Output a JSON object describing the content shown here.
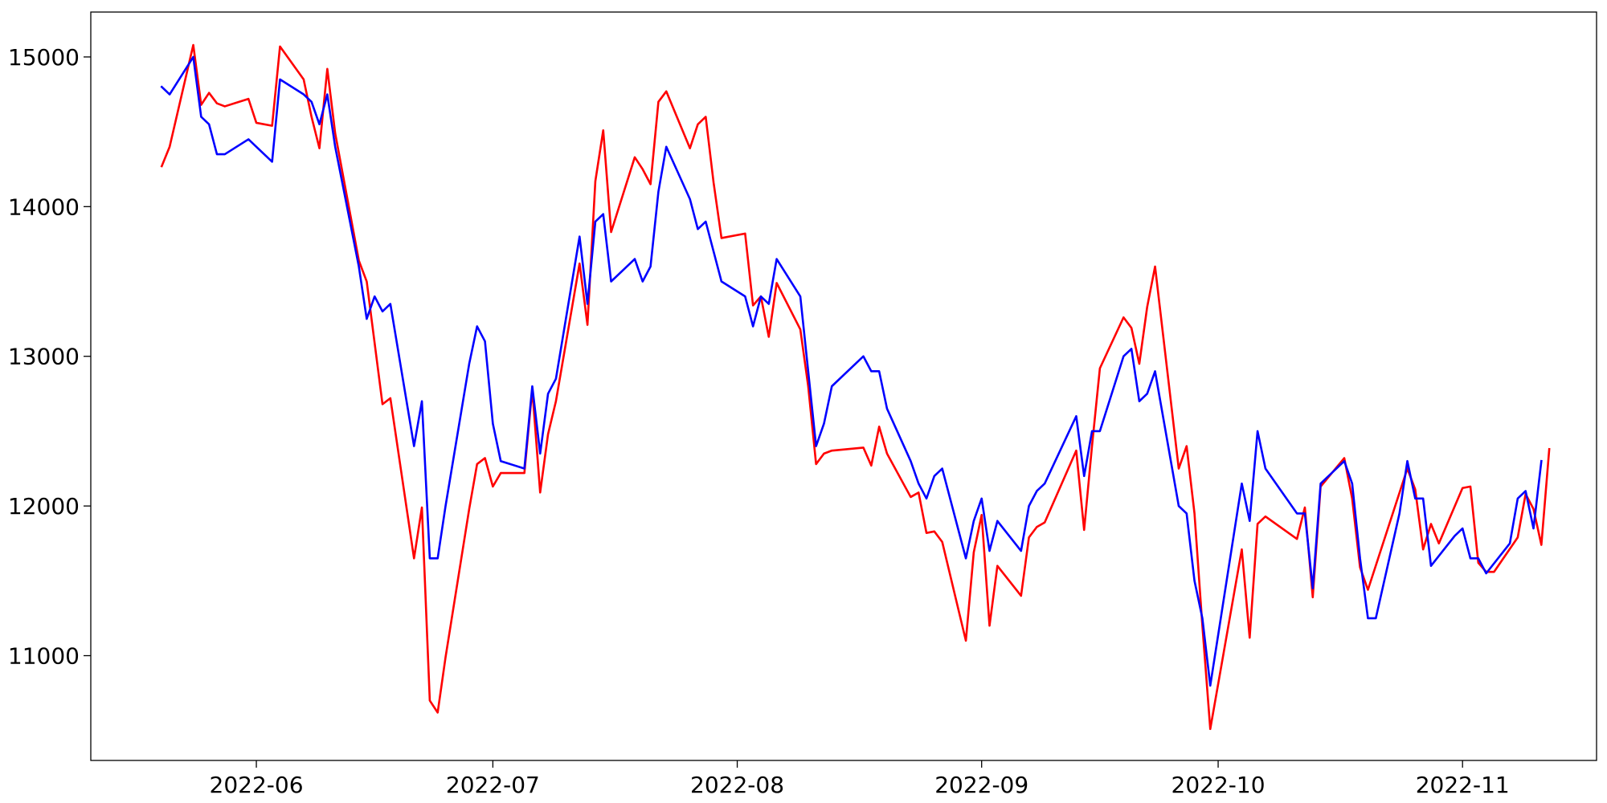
{
  "chart_data": {
    "type": "line",
    "title": "",
    "xlabel": "",
    "ylabel": "",
    "x_axis": {
      "type": "date",
      "range": [
        "2022-05-11",
        "2022-11-18"
      ],
      "ticks": [
        {
          "date": "2022-06-01",
          "label": "2022-06"
        },
        {
          "date": "2022-07-01",
          "label": "2022-07"
        },
        {
          "date": "2022-08-01",
          "label": "2022-08"
        },
        {
          "date": "2022-09-01",
          "label": "2022-09"
        },
        {
          "date": "2022-10-01",
          "label": "2022-10"
        },
        {
          "date": "2022-11-01",
          "label": "2022-11"
        }
      ]
    },
    "y_axis": {
      "range": [
        10300,
        15300
      ],
      "ticks": [
        {
          "value": 11000,
          "label": "11000"
        },
        {
          "value": 12000,
          "label": "12000"
        },
        {
          "value": 13000,
          "label": "13000"
        },
        {
          "value": 14000,
          "label": "14000"
        },
        {
          "value": 15000,
          "label": "15000"
        }
      ]
    },
    "grid": false,
    "legend": "none",
    "series": [
      {
        "color": "#ff0000",
        "points": [
          [
            "2022-05-20",
            14270
          ],
          [
            "2022-05-21",
            14400
          ],
          [
            "2022-05-24",
            15080
          ],
          [
            "2022-05-25",
            14680
          ],
          [
            "2022-05-26",
            14760
          ],
          [
            "2022-05-27",
            14690
          ],
          [
            "2022-05-28",
            14670
          ],
          [
            "2022-05-31",
            14720
          ],
          [
            "2022-06-01",
            14560
          ],
          [
            "2022-06-03",
            14540
          ],
          [
            "2022-06-04",
            15070
          ],
          [
            "2022-06-07",
            14850
          ],
          [
            "2022-06-08",
            14600
          ],
          [
            "2022-06-09",
            14390
          ],
          [
            "2022-06-10",
            14920
          ],
          [
            "2022-06-11",
            14490
          ],
          [
            "2022-06-14",
            13640
          ],
          [
            "2022-06-15",
            13500
          ],
          [
            "2022-06-17",
            12680
          ],
          [
            "2022-06-18",
            12720
          ],
          [
            "2022-06-21",
            11650
          ],
          [
            "2022-06-22",
            11990
          ],
          [
            "2022-06-23",
            10700
          ],
          [
            "2022-06-24",
            10620
          ],
          [
            "2022-06-25",
            10990
          ],
          [
            "2022-06-28",
            11980
          ],
          [
            "2022-06-29",
            12280
          ],
          [
            "2022-06-30",
            12320
          ],
          [
            "2022-07-01",
            12130
          ],
          [
            "2022-07-02",
            12220
          ],
          [
            "2022-07-05",
            12220
          ],
          [
            "2022-07-06",
            12780
          ],
          [
            "2022-07-07",
            12090
          ],
          [
            "2022-07-08",
            12480
          ],
          [
            "2022-07-09",
            12700
          ],
          [
            "2022-07-12",
            13620
          ],
          [
            "2022-07-13",
            13210
          ],
          [
            "2022-07-14",
            14170
          ],
          [
            "2022-07-15",
            14510
          ],
          [
            "2022-07-16",
            13830
          ],
          [
            "2022-07-19",
            14330
          ],
          [
            "2022-07-20",
            14250
          ],
          [
            "2022-07-21",
            14150
          ],
          [
            "2022-07-22",
            14700
          ],
          [
            "2022-07-23",
            14770
          ],
          [
            "2022-07-26",
            14390
          ],
          [
            "2022-07-27",
            14550
          ],
          [
            "2022-07-28",
            14600
          ],
          [
            "2022-07-29",
            14160
          ],
          [
            "2022-07-30",
            13790
          ],
          [
            "2022-08-02",
            13820
          ],
          [
            "2022-08-03",
            13340
          ],
          [
            "2022-08-04",
            13400
          ],
          [
            "2022-08-05",
            13130
          ],
          [
            "2022-08-06",
            13490
          ],
          [
            "2022-08-09",
            13180
          ],
          [
            "2022-08-10",
            12800
          ],
          [
            "2022-08-11",
            12280
          ],
          [
            "2022-08-12",
            12350
          ],
          [
            "2022-08-13",
            12370
          ],
          [
            "2022-08-17",
            12390
          ],
          [
            "2022-08-18",
            12270
          ],
          [
            "2022-08-19",
            12530
          ],
          [
            "2022-08-20",
            12350
          ],
          [
            "2022-08-23",
            12060
          ],
          [
            "2022-08-24",
            12090
          ],
          [
            "2022-08-25",
            11820
          ],
          [
            "2022-08-26",
            11830
          ],
          [
            "2022-08-27",
            11760
          ],
          [
            "2022-08-30",
            11100
          ],
          [
            "2022-08-31",
            11690
          ],
          [
            "2022-09-01",
            11940
          ],
          [
            "2022-09-02",
            11200
          ],
          [
            "2022-09-03",
            11600
          ],
          [
            "2022-09-06",
            11400
          ],
          [
            "2022-09-07",
            11790
          ],
          [
            "2022-09-08",
            11860
          ],
          [
            "2022-09-09",
            11890
          ],
          [
            "2022-09-13",
            12370
          ],
          [
            "2022-09-14",
            11840
          ],
          [
            "2022-09-15",
            12400
          ],
          [
            "2022-09-16",
            12920
          ],
          [
            "2022-09-19",
            13260
          ],
          [
            "2022-09-20",
            13190
          ],
          [
            "2022-09-21",
            12950
          ],
          [
            "2022-09-22",
            13330
          ],
          [
            "2022-09-23",
            13600
          ],
          [
            "2022-09-26",
            12250
          ],
          [
            "2022-09-27",
            12400
          ],
          [
            "2022-09-28",
            11950
          ],
          [
            "2022-09-29",
            11200
          ],
          [
            "2022-09-30",
            10510
          ],
          [
            "2022-10-04",
            11710
          ],
          [
            "2022-10-05",
            11120
          ],
          [
            "2022-10-06",
            11880
          ],
          [
            "2022-10-07",
            11930
          ],
          [
            "2022-10-11",
            11780
          ],
          [
            "2022-10-12",
            11990
          ],
          [
            "2022-10-13",
            11390
          ],
          [
            "2022-10-14",
            12130
          ],
          [
            "2022-10-17",
            12320
          ],
          [
            "2022-10-18",
            12050
          ],
          [
            "2022-10-19",
            11590
          ],
          [
            "2022-10-20",
            11440
          ],
          [
            "2022-10-25",
            12250
          ],
          [
            "2022-10-26",
            12110
          ],
          [
            "2022-10-27",
            11710
          ],
          [
            "2022-10-28",
            11880
          ],
          [
            "2022-10-29",
            11750
          ],
          [
            "2022-11-01",
            12120
          ],
          [
            "2022-11-02",
            12130
          ],
          [
            "2022-11-03",
            11620
          ],
          [
            "2022-11-04",
            11560
          ],
          [
            "2022-11-05",
            11560
          ],
          [
            "2022-11-08",
            11790
          ],
          [
            "2022-11-09",
            12080
          ],
          [
            "2022-11-10",
            11980
          ],
          [
            "2022-11-11",
            11740
          ],
          [
            "2022-11-12",
            12380
          ]
        ]
      },
      {
        "color": "#0000ff",
        "points": [
          [
            "2022-05-20",
            14800
          ],
          [
            "2022-05-21",
            14750
          ],
          [
            "2022-05-24",
            15000
          ],
          [
            "2022-05-25",
            14600
          ],
          [
            "2022-05-26",
            14550
          ],
          [
            "2022-05-27",
            14350
          ],
          [
            "2022-05-28",
            14350
          ],
          [
            "2022-05-31",
            14450
          ],
          [
            "2022-06-01",
            14400
          ],
          [
            "2022-06-03",
            14300
          ],
          [
            "2022-06-04",
            14850
          ],
          [
            "2022-06-07",
            14750
          ],
          [
            "2022-06-08",
            14700
          ],
          [
            "2022-06-09",
            14550
          ],
          [
            "2022-06-10",
            14750
          ],
          [
            "2022-06-11",
            14400
          ],
          [
            "2022-06-14",
            13600
          ],
          [
            "2022-06-15",
            13250
          ],
          [
            "2022-06-16",
            13400
          ],
          [
            "2022-06-17",
            13300
          ],
          [
            "2022-06-18",
            13350
          ],
          [
            "2022-06-21",
            12400
          ],
          [
            "2022-06-22",
            12700
          ],
          [
            "2022-06-23",
            11650
          ],
          [
            "2022-06-24",
            11650
          ],
          [
            "2022-06-25",
            12000
          ],
          [
            "2022-06-28",
            12950
          ],
          [
            "2022-06-29",
            13200
          ],
          [
            "2022-06-30",
            13100
          ],
          [
            "2022-07-01",
            12550
          ],
          [
            "2022-07-02",
            12300
          ],
          [
            "2022-07-05",
            12250
          ],
          [
            "2022-07-06",
            12800
          ],
          [
            "2022-07-07",
            12350
          ],
          [
            "2022-07-08",
            12750
          ],
          [
            "2022-07-09",
            12850
          ],
          [
            "2022-07-12",
            13800
          ],
          [
            "2022-07-13",
            13350
          ],
          [
            "2022-07-14",
            13900
          ],
          [
            "2022-07-15",
            13950
          ],
          [
            "2022-07-16",
            13500
          ],
          [
            "2022-07-19",
            13650
          ],
          [
            "2022-07-20",
            13500
          ],
          [
            "2022-07-21",
            13600
          ],
          [
            "2022-07-22",
            14100
          ],
          [
            "2022-07-23",
            14400
          ],
          [
            "2022-07-26",
            14050
          ],
          [
            "2022-07-27",
            13850
          ],
          [
            "2022-07-28",
            13900
          ],
          [
            "2022-07-30",
            13500
          ],
          [
            "2022-08-02",
            13400
          ],
          [
            "2022-08-03",
            13200
          ],
          [
            "2022-08-04",
            13400
          ],
          [
            "2022-08-05",
            13350
          ],
          [
            "2022-08-06",
            13650
          ],
          [
            "2022-08-09",
            13400
          ],
          [
            "2022-08-10",
            12900
          ],
          [
            "2022-08-11",
            12400
          ],
          [
            "2022-08-12",
            12550
          ],
          [
            "2022-08-13",
            12800
          ],
          [
            "2022-08-17",
            13000
          ],
          [
            "2022-08-18",
            12900
          ],
          [
            "2022-08-19",
            12900
          ],
          [
            "2022-08-20",
            12650
          ],
          [
            "2022-08-23",
            12300
          ],
          [
            "2022-08-24",
            12150
          ],
          [
            "2022-08-25",
            12050
          ],
          [
            "2022-08-26",
            12200
          ],
          [
            "2022-08-27",
            12250
          ],
          [
            "2022-08-30",
            11650
          ],
          [
            "2022-08-31",
            11900
          ],
          [
            "2022-09-01",
            12050
          ],
          [
            "2022-09-02",
            11700
          ],
          [
            "2022-09-03",
            11900
          ],
          [
            "2022-09-06",
            11700
          ],
          [
            "2022-09-07",
            12000
          ],
          [
            "2022-09-08",
            12100
          ],
          [
            "2022-09-09",
            12150
          ],
          [
            "2022-09-13",
            12600
          ],
          [
            "2022-09-14",
            12200
          ],
          [
            "2022-09-15",
            12500
          ],
          [
            "2022-09-16",
            12500
          ],
          [
            "2022-09-19",
            13000
          ],
          [
            "2022-09-20",
            13050
          ],
          [
            "2022-09-21",
            12700
          ],
          [
            "2022-09-22",
            12750
          ],
          [
            "2022-09-23",
            12900
          ],
          [
            "2022-09-26",
            12000
          ],
          [
            "2022-09-27",
            11950
          ],
          [
            "2022-09-28",
            11500
          ],
          [
            "2022-09-29",
            11250
          ],
          [
            "2022-09-30",
            10800
          ],
          [
            "2022-10-04",
            12150
          ],
          [
            "2022-10-05",
            11900
          ],
          [
            "2022-10-06",
            12500
          ],
          [
            "2022-10-07",
            12250
          ],
          [
            "2022-10-11",
            11950
          ],
          [
            "2022-10-12",
            11950
          ],
          [
            "2022-10-13",
            11450
          ],
          [
            "2022-10-14",
            12150
          ],
          [
            "2022-10-17",
            12300
          ],
          [
            "2022-10-18",
            12150
          ],
          [
            "2022-10-19",
            11650
          ],
          [
            "2022-10-20",
            11250
          ],
          [
            "2022-10-21",
            11250
          ],
          [
            "2022-10-24",
            11950
          ],
          [
            "2022-10-25",
            12300
          ],
          [
            "2022-10-26",
            12050
          ],
          [
            "2022-10-27",
            12050
          ],
          [
            "2022-10-28",
            11600
          ],
          [
            "2022-10-31",
            11800
          ],
          [
            "2022-11-01",
            11850
          ],
          [
            "2022-11-02",
            11650
          ],
          [
            "2022-11-03",
            11650
          ],
          [
            "2022-11-04",
            11550
          ],
          [
            "2022-11-07",
            11750
          ],
          [
            "2022-11-08",
            12050
          ],
          [
            "2022-11-09",
            12100
          ],
          [
            "2022-11-10",
            11850
          ],
          [
            "2022-11-11",
            12300
          ]
        ]
      }
    ]
  }
}
